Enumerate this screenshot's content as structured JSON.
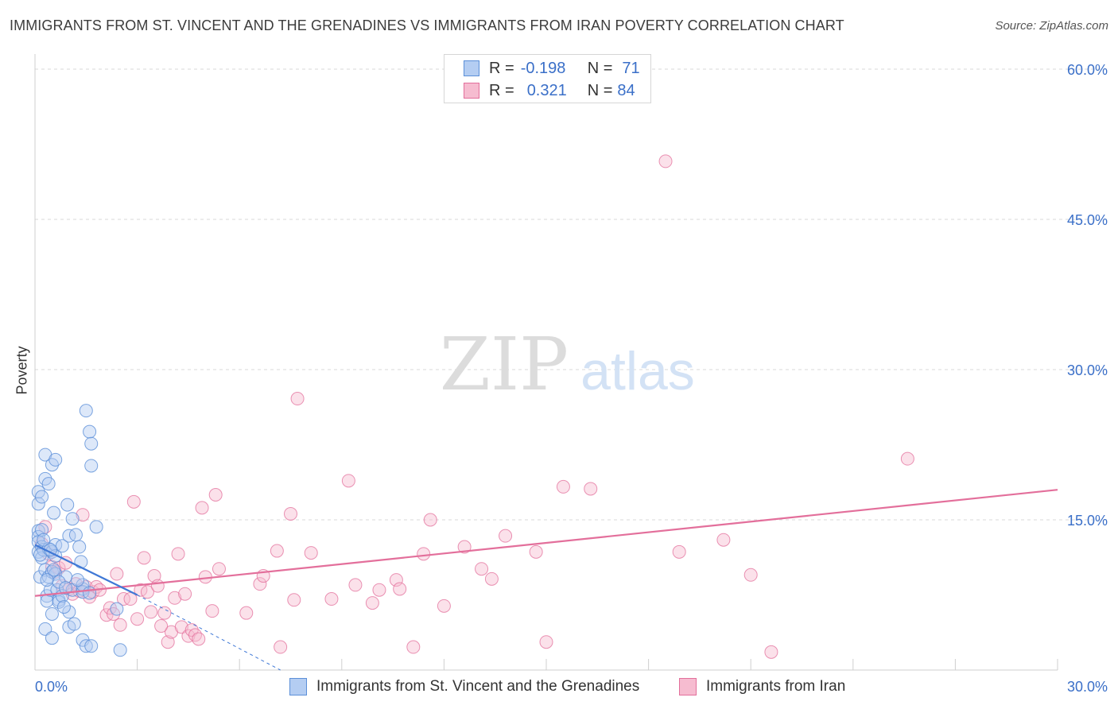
{
  "header": {
    "title": "IMMIGRANTS FROM ST. VINCENT AND THE GRENADINES VS IMMIGRANTS FROM IRAN POVERTY CORRELATION CHART",
    "source": "Source: ZipAtlas.com"
  },
  "watermark": {
    "zip": "ZIP",
    "atlas": "atlas"
  },
  "legend": {
    "series1": {
      "r_label": "R =",
      "r_value": "-0.198",
      "n_label": "N =",
      "n_value": "71"
    },
    "series2": {
      "r_label": "R =",
      "r_value": "0.321",
      "n_label": "N =",
      "n_value": "84"
    }
  },
  "chart_data": {
    "type": "scatter",
    "title": "IMMIGRANTS FROM ST. VINCENT AND THE GRENADINES VS IMMIGRANTS FROM IRAN POVERTY CORRELATION CHART",
    "ylabel": "Poverty",
    "xlabel": "",
    "xlim": [
      0,
      30
    ],
    "ylim": [
      0,
      63
    ],
    "x_tick_labels": [
      "0.0%",
      "30.0%"
    ],
    "y_ticks": [
      15,
      30,
      45,
      60
    ],
    "y_tick_labels": [
      "15.0%",
      "30.0%",
      "45.0%",
      "60.0%"
    ],
    "grid": "horizontal dashed",
    "colors": {
      "series1": "#5b8fd8",
      "series2": "#e36f9b",
      "series1_fill": "#b4cdf2",
      "series2_fill": "#f6bcd0",
      "tick_label": "#3a6fc8"
    },
    "series": [
      {
        "name": "Immigrants from St. Vincent and the Grenadines",
        "trend": {
          "x": [
            0,
            3.0
          ],
          "y": [
            12.5,
            7.5
          ],
          "dashed_extension_to": [
            7.2,
            0
          ]
        },
        "points": [
          [
            0.1,
            17.8
          ],
          [
            0.1,
            16.6
          ],
          [
            0.1,
            13.9
          ],
          [
            0.1,
            13.3
          ],
          [
            0.1,
            12.8
          ],
          [
            0.1,
            11.8
          ],
          [
            0.15,
            9.3
          ],
          [
            0.2,
            17.3
          ],
          [
            0.2,
            14.0
          ],
          [
            0.2,
            12.3
          ],
          [
            0.2,
            11.2
          ],
          [
            0.25,
            12.0
          ],
          [
            0.3,
            19.1
          ],
          [
            0.3,
            21.5
          ],
          [
            0.3,
            10.0
          ],
          [
            0.3,
            4.1
          ],
          [
            0.35,
            7.4
          ],
          [
            0.35,
            6.9
          ],
          [
            0.4,
            18.6
          ],
          [
            0.4,
            12.1
          ],
          [
            0.4,
            9.3
          ],
          [
            0.45,
            8.0
          ],
          [
            0.5,
            20.5
          ],
          [
            0.5,
            11.8
          ],
          [
            0.5,
            9.8
          ],
          [
            0.5,
            5.6
          ],
          [
            0.5,
            3.2
          ],
          [
            0.55,
            15.7
          ],
          [
            0.6,
            21.0
          ],
          [
            0.6,
            12.5
          ],
          [
            0.6,
            11.4
          ],
          [
            0.6,
            9.6
          ],
          [
            0.65,
            8.0
          ],
          [
            0.7,
            7.0
          ],
          [
            0.7,
            6.8
          ],
          [
            0.8,
            12.4
          ],
          [
            0.8,
            7.4
          ],
          [
            0.9,
            9.3
          ],
          [
            0.95,
            16.5
          ],
          [
            1.0,
            13.4
          ],
          [
            1.0,
            5.8
          ],
          [
            1.0,
            4.3
          ],
          [
            1.1,
            15.1
          ],
          [
            1.1,
            8.0
          ],
          [
            1.15,
            4.6
          ],
          [
            1.2,
            13.5
          ],
          [
            1.3,
            12.3
          ],
          [
            1.35,
            10.8
          ],
          [
            1.4,
            8.1
          ],
          [
            1.4,
            3.0
          ],
          [
            1.4,
            7.8
          ],
          [
            1.4,
            8.5
          ],
          [
            1.5,
            25.9
          ],
          [
            1.5,
            2.4
          ],
          [
            1.6,
            23.8
          ],
          [
            1.6,
            7.7
          ],
          [
            1.65,
            22.6
          ],
          [
            1.65,
            20.4
          ],
          [
            1.65,
            2.4
          ],
          [
            1.8,
            14.3
          ],
          [
            2.4,
            6.1
          ],
          [
            2.5,
            2.0
          ],
          [
            0.15,
            11.5
          ],
          [
            0.25,
            13.0
          ],
          [
            0.45,
            12.0
          ],
          [
            0.55,
            10.0
          ],
          [
            0.7,
            8.8
          ],
          [
            0.85,
            6.3
          ],
          [
            1.25,
            9.0
          ],
          [
            0.35,
            9.0
          ],
          [
            0.9,
            8.2
          ]
        ]
      },
      {
        "name": "Immigrants from Iran",
        "trend": {
          "x": [
            0,
            30
          ],
          "y": [
            7.4,
            18.0
          ]
        },
        "points": [
          [
            0.3,
            14.3
          ],
          [
            0.4,
            11.6
          ],
          [
            0.5,
            10.3
          ],
          [
            0.6,
            9.8
          ],
          [
            0.7,
            10.2
          ],
          [
            0.9,
            10.7
          ],
          [
            1.0,
            8.1
          ],
          [
            1.1,
            7.6
          ],
          [
            1.2,
            8.6
          ],
          [
            1.4,
            15.5
          ],
          [
            1.5,
            8.3
          ],
          [
            1.6,
            7.3
          ],
          [
            1.7,
            7.8
          ],
          [
            1.8,
            8.3
          ],
          [
            1.9,
            8.0
          ],
          [
            2.1,
            5.5
          ],
          [
            2.2,
            6.2
          ],
          [
            2.4,
            9.6
          ],
          [
            2.5,
            4.5
          ],
          [
            2.6,
            7.1
          ],
          [
            2.8,
            7.1
          ],
          [
            2.9,
            16.8
          ],
          [
            3.0,
            5.1
          ],
          [
            3.1,
            8.0
          ],
          [
            3.2,
            11.2
          ],
          [
            3.3,
            7.8
          ],
          [
            3.4,
            5.8
          ],
          [
            3.5,
            9.4
          ],
          [
            3.6,
            8.4
          ],
          [
            3.8,
            5.7
          ],
          [
            3.9,
            2.8
          ],
          [
            4.0,
            3.8
          ],
          [
            4.1,
            7.2
          ],
          [
            4.2,
            11.6
          ],
          [
            4.3,
            4.3
          ],
          [
            4.4,
            7.6
          ],
          [
            4.5,
            3.4
          ],
          [
            4.6,
            4.0
          ],
          [
            4.7,
            3.5
          ],
          [
            4.8,
            3.1
          ],
          [
            4.9,
            16.2
          ],
          [
            5.0,
            9.3
          ],
          [
            5.2,
            5.9
          ],
          [
            5.3,
            17.5
          ],
          [
            5.4,
            10.1
          ],
          [
            6.2,
            5.7
          ],
          [
            6.6,
            8.6
          ],
          [
            6.7,
            9.4
          ],
          [
            7.1,
            11.9
          ],
          [
            7.2,
            2.3
          ],
          [
            7.5,
            15.6
          ],
          [
            7.6,
            7.0
          ],
          [
            7.7,
            27.1
          ],
          [
            8.1,
            11.7
          ],
          [
            8.7,
            7.1
          ],
          [
            9.2,
            18.9
          ],
          [
            9.4,
            8.5
          ],
          [
            9.9,
            6.7
          ],
          [
            10.1,
            8.0
          ],
          [
            10.6,
            9.0
          ],
          [
            10.7,
            8.1
          ],
          [
            11.1,
            2.3
          ],
          [
            11.4,
            11.6
          ],
          [
            11.6,
            15.0
          ],
          [
            12.0,
            6.4
          ],
          [
            12.6,
            12.3
          ],
          [
            13.1,
            10.1
          ],
          [
            13.4,
            9.1
          ],
          [
            13.8,
            13.4
          ],
          [
            14.7,
            11.8
          ],
          [
            15.0,
            2.8
          ],
          [
            15.5,
            18.3
          ],
          [
            16.3,
            18.1
          ],
          [
            18.5,
            50.8
          ],
          [
            18.9,
            11.8
          ],
          [
            20.2,
            13.0
          ],
          [
            21.0,
            9.5
          ],
          [
            21.6,
            1.8
          ],
          [
            25.6,
            21.1
          ],
          [
            0.2,
            12.6
          ],
          [
            0.8,
            8.4
          ],
          [
            1.3,
            7.9
          ],
          [
            2.3,
            5.6
          ],
          [
            3.7,
            4.4
          ]
        ]
      }
    ]
  },
  "bottom_legend": {
    "series1_label": "Immigrants from St. Vincent and the Grenadines",
    "series2_label": "Immigrants from Iran"
  }
}
